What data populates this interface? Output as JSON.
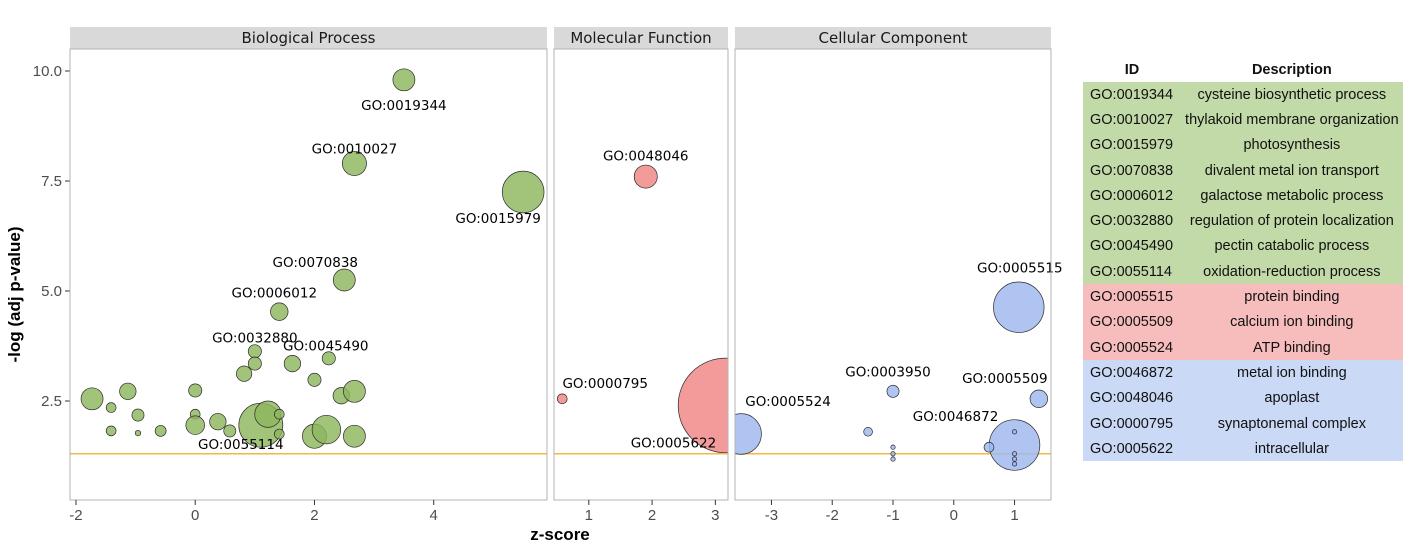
{
  "chart_data": {
    "type": "scatter",
    "title": "",
    "xlabel": "z-score",
    "ylabel": "-log (adj p-value)",
    "threshold": 1.3,
    "threshold_color": "#F29F05",
    "y_ticks": [
      "2.5",
      "5.0",
      "7.5",
      "10.0"
    ],
    "y_tick_values": [
      2.5,
      5.0,
      7.5,
      10.0
    ],
    "ylim": [
      0.25,
      10.5
    ],
    "panels": [
      {
        "name": "Biological Process",
        "color": "#8DB65D",
        "xlim": [
          -2.1,
          5.9
        ],
        "x_ticks": [
          "-2",
          "0",
          "2",
          "4"
        ],
        "x_tick_values": [
          -2,
          0,
          2,
          4
        ],
        "points": [
          {
            "x": 3.5,
            "y": 9.8,
            "size": 1.0,
            "label": "GO:0019344"
          },
          {
            "x": 2.67,
            "y": 7.9,
            "size": 1.1,
            "label": "GO:0010027"
          },
          {
            "x": 5.5,
            "y": 7.25,
            "size": 1.9,
            "label": "GO:0015979"
          },
          {
            "x": 2.5,
            "y": 5.25,
            "size": 1.0,
            "label": "GO:0070838"
          },
          {
            "x": 1.41,
            "y": 4.53,
            "size": 0.8,
            "label": "GO:0006012"
          },
          {
            "x": 1.0,
            "y": 3.63,
            "size": 0.6,
            "label": "GO:0032880"
          },
          {
            "x": 2.24,
            "y": 3.47,
            "size": 0.6,
            "label": "GO:0045490"
          },
          {
            "x": 1.1,
            "y": 1.95,
            "size": 2.0,
            "label": "GO:0055114"
          },
          {
            "x": -1.73,
            "y": 2.55,
            "size": 1.0,
            "label": ""
          },
          {
            "x": -1.13,
            "y": 2.72,
            "size": 0.75,
            "label": ""
          },
          {
            "x": -1.41,
            "y": 2.35,
            "size": 0.45,
            "label": ""
          },
          {
            "x": -0.96,
            "y": 2.18,
            "size": 0.55,
            "label": ""
          },
          {
            "x": -1.41,
            "y": 1.82,
            "size": 0.45,
            "label": ""
          },
          {
            "x": -0.96,
            "y": 1.77,
            "size": 0.25,
            "label": ""
          },
          {
            "x": -0.58,
            "y": 1.82,
            "size": 0.5,
            "label": ""
          },
          {
            "x": 0.0,
            "y": 2.74,
            "size": 0.6,
            "label": ""
          },
          {
            "x": 0.0,
            "y": 2.2,
            "size": 0.45,
            "label": ""
          },
          {
            "x": 0.0,
            "y": 1.95,
            "size": 0.85,
            "label": ""
          },
          {
            "x": 0.38,
            "y": 2.03,
            "size": 0.75,
            "label": ""
          },
          {
            "x": 0.58,
            "y": 1.82,
            "size": 0.55,
            "label": ""
          },
          {
            "x": 0.82,
            "y": 3.12,
            "size": 0.7,
            "label": ""
          },
          {
            "x": 1.0,
            "y": 3.35,
            "size": 0.6,
            "label": ""
          },
          {
            "x": 1.22,
            "y": 2.2,
            "size": 1.2,
            "label": ""
          },
          {
            "x": 1.41,
            "y": 2.2,
            "size": 0.45,
            "label": ""
          },
          {
            "x": 1.41,
            "y": 1.75,
            "size": 0.45,
            "label": ""
          },
          {
            "x": 1.63,
            "y": 3.35,
            "size": 0.75,
            "label": ""
          },
          {
            "x": 2.0,
            "y": 2.98,
            "size": 0.6,
            "label": ""
          },
          {
            "x": 2.0,
            "y": 1.7,
            "size": 1.1,
            "label": ""
          },
          {
            "x": 2.2,
            "y": 1.85,
            "size": 1.3,
            "label": ""
          },
          {
            "x": 2.45,
            "y": 2.62,
            "size": 0.75,
            "label": ""
          },
          {
            "x": 2.67,
            "y": 2.72,
            "size": 1.0,
            "label": ""
          },
          {
            "x": 2.67,
            "y": 1.7,
            "size": 1.0,
            "label": ""
          }
        ],
        "label_offsets": {
          "GO:0019344": [
            0,
            30
          ],
          "GO:0010027": [
            0,
            -10
          ],
          "GO:0015979": [
            -25,
            31
          ],
          "GO:0070838": [
            -29,
            -13
          ],
          "GO:0006012": [
            -5,
            -14
          ],
          "GO:0032880": [
            0,
            -9
          ],
          "GO:0045490": [
            -3,
            -8
          ],
          "GO:0055114": [
            -20,
            24
          ]
        }
      },
      {
        "name": "Molecular Function",
        "color": "#F08585",
        "xlim": [
          0.45,
          3.2
        ],
        "x_ticks": [
          "1",
          "2",
          "3"
        ],
        "x_tick_values": [
          1,
          2,
          3
        ],
        "points": [
          {
            "x": 1.9,
            "y": 7.6,
            "size": 1.05,
            "label": "GO:0048046"
          },
          {
            "x": 0.58,
            "y": 2.55,
            "size": 0.45,
            "label": "GO:0000795"
          },
          {
            "x": 3.16,
            "y": 2.4,
            "size": 4.3,
            "label": "GO:0005622"
          }
        ],
        "label_offsets": {
          "GO:0048046": [
            0,
            -16
          ],
          "GO:0000795": [
            43,
            -11
          ],
          "GO:0005622": [
            -52,
            42
          ]
        }
      },
      {
        "name": "Cellular Component",
        "color": "#9DB7EE",
        "xlim": [
          -3.6,
          1.6
        ],
        "x_ticks": [
          "-3",
          "-2",
          "-1",
          "0",
          "1"
        ],
        "x_tick_values": [
          -3,
          -2,
          -1,
          0,
          1
        ],
        "points": [
          {
            "x": 1.07,
            "y": 4.63,
            "size": 2.3,
            "label": "GO:0005515"
          },
          {
            "x": 1.4,
            "y": 2.55,
            "size": 0.8,
            "label": "GO:0005509"
          },
          {
            "x": -3.5,
            "y": 1.75,
            "size": 1.85,
            "label": "GO:0005524"
          },
          {
            "x": 1.0,
            "y": 1.5,
            "size": 2.3,
            "label": "GO:0046872"
          },
          {
            "x": -1.0,
            "y": 2.72,
            "size": 0.55,
            "label": "GO:0003950"
          },
          {
            "x": -1.41,
            "y": 1.8,
            "size": 0.4,
            "label": ""
          },
          {
            "x": -1.0,
            "y": 1.45,
            "size": 0.2,
            "label": ""
          },
          {
            "x": -1.0,
            "y": 1.3,
            "size": 0.2,
            "label": ""
          },
          {
            "x": -1.0,
            "y": 1.18,
            "size": 0.2,
            "label": ""
          },
          {
            "x": 0.58,
            "y": 1.45,
            "size": 0.45,
            "label": ""
          },
          {
            "x": 1.0,
            "y": 1.8,
            "size": 0.2,
            "label": ""
          },
          {
            "x": 1.0,
            "y": 1.3,
            "size": 0.2,
            "label": ""
          },
          {
            "x": 1.0,
            "y": 1.18,
            "size": 0.2,
            "label": ""
          },
          {
            "x": 1.0,
            "y": 1.07,
            "size": 0.2,
            "label": ""
          }
        ],
        "label_offsets": {
          "GO:0005515": [
            1,
            -35
          ],
          "GO:0005509": [
            -34,
            -16
          ],
          "GO:0005524": [
            47,
            -28
          ],
          "GO:0046872": [
            -59,
            -24
          ],
          "GO:0003950": [
            -5,
            -15
          ]
        }
      }
    ]
  },
  "table": {
    "header_id": "ID",
    "header_desc": "Description",
    "colors": {
      "bp": "#C2D9A8",
      "mf": "#F7BDBD",
      "cc": "#CAD9F5"
    },
    "rows": [
      {
        "id": "GO:0019344",
        "desc": "cysteine biosynthetic process",
        "cat": "bp"
      },
      {
        "id": "GO:0010027",
        "desc": "thylakoid membrane organization",
        "cat": "bp"
      },
      {
        "id": "GO:0015979",
        "desc": "photosynthesis",
        "cat": "bp"
      },
      {
        "id": "GO:0070838",
        "desc": "divalent metal ion transport",
        "cat": "bp"
      },
      {
        "id": "GO:0006012",
        "desc": "galactose metabolic process",
        "cat": "bp"
      },
      {
        "id": "GO:0032880",
        "desc": "regulation of protein localization",
        "cat": "bp"
      },
      {
        "id": "GO:0045490",
        "desc": "pectin catabolic process",
        "cat": "bp"
      },
      {
        "id": "GO:0055114",
        "desc": "oxidation-reduction process",
        "cat": "bp"
      },
      {
        "id": "GO:0005515",
        "desc": "protein binding",
        "cat": "mf"
      },
      {
        "id": "GO:0005509",
        "desc": "calcium ion binding",
        "cat": "mf"
      },
      {
        "id": "GO:0005524",
        "desc": "ATP binding",
        "cat": "mf"
      },
      {
        "id": "GO:0046872",
        "desc": "metal ion binding",
        "cat": "cc"
      },
      {
        "id": "GO:0048046",
        "desc": "apoplast",
        "cat": "cc"
      },
      {
        "id": "GO:0000795",
        "desc": "synaptonemal complex",
        "cat": "cc"
      },
      {
        "id": "GO:0005622",
        "desc": "intracellular",
        "cat": "cc"
      }
    ]
  }
}
